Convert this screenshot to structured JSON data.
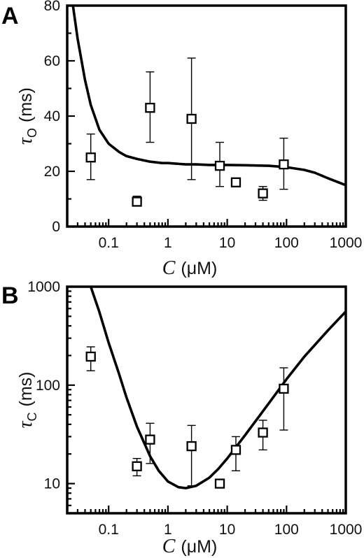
{
  "chart_data": [
    {
      "panel": "A",
      "type": "scatter",
      "x_scale": "log",
      "y_scale": "linear",
      "xlim": [
        0.02,
        1000
      ],
      "ylim": [
        0,
        80
      ],
      "xticks": [
        0.1,
        1,
        10,
        100,
        1000
      ],
      "xtick_labels": [
        "0.1",
        "1",
        "10",
        "100",
        "1000"
      ],
      "yticks": [
        0,
        20,
        40,
        60,
        80
      ],
      "ytick_labels": [
        "0",
        "20",
        "40",
        "60",
        "80"
      ],
      "xlabel": {
        "symbol": "C",
        "unit": "(μM)"
      },
      "ylabel": {
        "symbol": "τ",
        "subscript": "O",
        "unit": "(ms)"
      },
      "grid": false,
      "points": [
        {
          "x": 0.05,
          "y": 25,
          "yerr_low": 17,
          "yerr_high": 33.5
        },
        {
          "x": 0.3,
          "y": 9,
          "yerr_low": 7.5,
          "yerr_high": 11
        },
        {
          "x": 0.5,
          "y": 43,
          "yerr_low": 30.5,
          "yerr_high": 56
        },
        {
          "x": 2.5,
          "y": 39,
          "yerr_low": 17,
          "yerr_high": 61
        },
        {
          "x": 7.5,
          "y": 22,
          "yerr_low": 14.5,
          "yerr_high": 30.5
        },
        {
          "x": 14,
          "y": 16,
          "yerr_low": 15,
          "yerr_high": 17.5
        },
        {
          "x": 40,
          "y": 12,
          "yerr_low": 9.5,
          "yerr_high": 14.5
        },
        {
          "x": 90,
          "y": 22.5,
          "yerr_low": 13.5,
          "yerr_high": 32
        }
      ],
      "fit_curve": {
        "x": [
          0.025,
          0.03,
          0.04,
          0.05,
          0.07,
          0.1,
          0.15,
          0.2,
          0.3,
          0.5,
          0.8,
          1,
          2,
          3,
          5,
          10,
          20,
          50,
          100,
          200,
          300,
          500,
          1000
        ],
        "y": [
          80,
          68,
          53,
          44,
          35,
          30,
          27,
          25.5,
          24.5,
          23.5,
          23,
          23,
          22.5,
          22.5,
          22.3,
          22.3,
          22.2,
          22,
          21.5,
          20.5,
          19.5,
          17.5,
          15
        ]
      }
    },
    {
      "panel": "B",
      "type": "scatter",
      "x_scale": "log",
      "y_scale": "log",
      "xlim": [
        0.02,
        1000
      ],
      "ylim": [
        5,
        1000
      ],
      "xticks": [
        0.1,
        1,
        10,
        100,
        1000
      ],
      "xtick_labels": [
        "0.1",
        "1",
        "10",
        "100",
        "1000"
      ],
      "yticks": [
        10,
        100,
        1000
      ],
      "ytick_labels": [
        "10",
        "100",
        "1000"
      ],
      "xlabel": {
        "symbol": "C",
        "unit": "(μM)"
      },
      "ylabel": {
        "symbol": "τ",
        "subscript": "C",
        "unit": "(ms)"
      },
      "grid": false,
      "points": [
        {
          "x": 0.05,
          "y": 195,
          "yerr_low": 140,
          "yerr_high": 245
        },
        {
          "x": 0.3,
          "y": 15,
          "yerr_low": 12,
          "yerr_high": 18
        },
        {
          "x": 0.5,
          "y": 28,
          "yerr_low": 16,
          "yerr_high": 41
        },
        {
          "x": 2.5,
          "y": 24,
          "yerr_low": 9.5,
          "yerr_high": 39
        },
        {
          "x": 7.5,
          "y": 10,
          "yerr_low": 9.5,
          "yerr_high": 10.5
        },
        {
          "x": 14,
          "y": 22,
          "yerr_low": 13.5,
          "yerr_high": 30
        },
        {
          "x": 40,
          "y": 33,
          "yerr_low": 22,
          "yerr_high": 44
        },
        {
          "x": 90,
          "y": 92,
          "yerr_low": 35,
          "yerr_high": 150
        }
      ],
      "fit_curve": {
        "x": [
          0.05,
          0.07,
          0.1,
          0.15,
          0.2,
          0.3,
          0.5,
          0.7,
          1,
          1.5,
          2,
          3,
          5,
          7,
          10,
          20,
          50,
          100,
          200,
          500,
          1000
        ],
        "y": [
          1000,
          550,
          270,
          130,
          75,
          38,
          19,
          13.5,
          10.5,
          9.2,
          9,
          9.5,
          11.5,
          14,
          18,
          31,
          65,
          115,
          195,
          360,
          560
        ]
      }
    }
  ]
}
